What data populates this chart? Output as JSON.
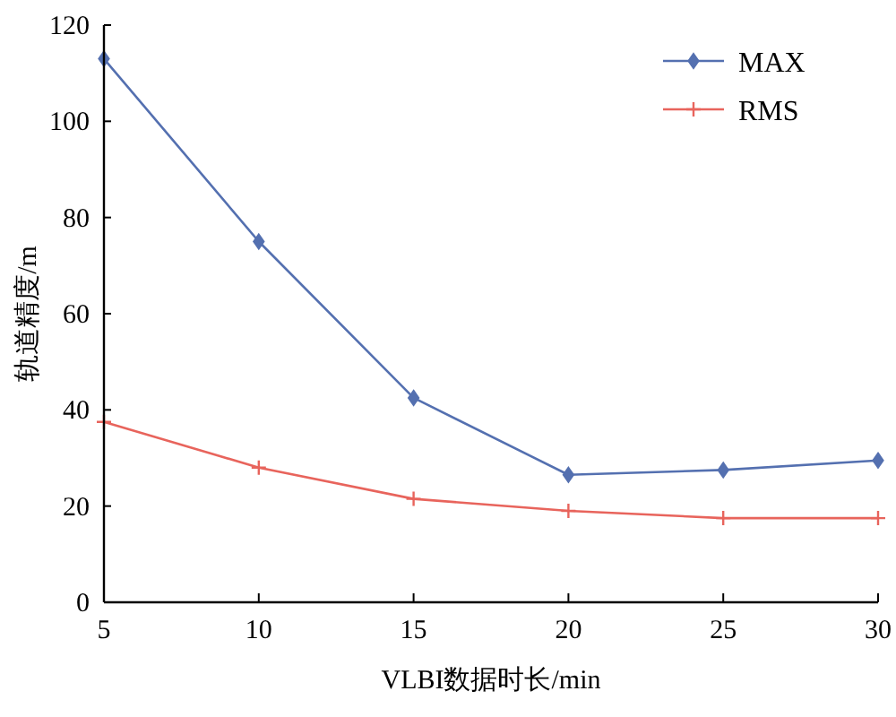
{
  "chart_data": {
    "type": "line",
    "xlabel": "VLBI数据时长/min",
    "ylabel": "轨道精度/m",
    "x": [
      5,
      10,
      15,
      20,
      25,
      30
    ],
    "series": [
      {
        "name": "MAX",
        "color": "#5470b0",
        "marker": "diamond",
        "values": [
          113,
          75,
          42.5,
          26.5,
          27.5,
          29.5
        ]
      },
      {
        "name": "RMS",
        "color": "#e8645c",
        "marker": "cross",
        "values": [
          37.5,
          28,
          21.5,
          19,
          17.5,
          17.5
        ]
      }
    ],
    "xlim": [
      5,
      30
    ],
    "xticks": [
      5,
      10,
      15,
      20,
      25,
      30
    ],
    "ylim": [
      0,
      120
    ],
    "yticks": [
      0,
      20,
      40,
      60,
      80,
      100,
      120
    ],
    "grid": false,
    "legend": "top right",
    "line_style": "solid"
  }
}
